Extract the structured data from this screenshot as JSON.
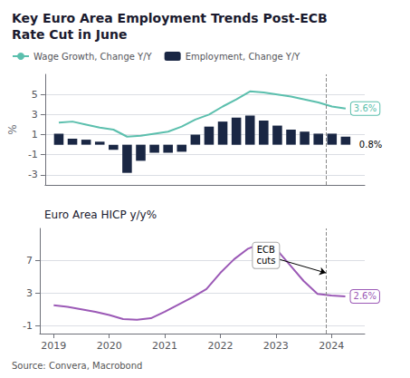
{
  "chart_data": [
    {
      "type": "bar",
      "title": "Key Euro Area Employment Trends Post-ECB\nRate Cut in June",
      "x": [
        2019.0,
        2019.25,
        2019.5,
        2019.75,
        2020.0,
        2020.25,
        2020.5,
        2020.75,
        2021.0,
        2021.25,
        2021.5,
        2021.75,
        2022.0,
        2022.25,
        2022.5,
        2022.75,
        2023.0,
        2023.25,
        2023.5,
        2023.75,
        2024.0,
        2024.25
      ],
      "series": [
        {
          "name": "Wage Growth, Change Y/Y",
          "type": "line",
          "color": "#5bbfad",
          "values": [
            2.2,
            2.3,
            2.0,
            1.7,
            1.5,
            0.8,
            0.9,
            1.1,
            1.3,
            1.8,
            2.5,
            3.0,
            3.8,
            4.5,
            5.3,
            5.2,
            5.0,
            4.8,
            4.5,
            4.2,
            3.8,
            3.6
          ]
        },
        {
          "name": "Employment, Change Y/Y",
          "type": "bar",
          "color": "#1a2744",
          "values": [
            1.1,
            0.6,
            0.5,
            0.3,
            -0.5,
            -2.8,
            -1.6,
            -0.8,
            -0.8,
            -0.7,
            1.0,
            1.8,
            2.3,
            2.7,
            2.9,
            2.4,
            1.9,
            1.5,
            1.3,
            1.1,
            1.1,
            0.8
          ]
        }
      ],
      "xlim": [
        2018.75,
        2024.6
      ],
      "ylim": [
        -4,
        7
      ],
      "yticks": [
        -3,
        -1,
        1,
        3,
        5
      ],
      "ylabel": "%",
      "grid": true,
      "legend": "upper left",
      "tick_labels": "y",
      "reference_lines": [
        {
          "x": 2023.9,
          "color": "#888888",
          "line_style": "dashed"
        }
      ],
      "annotations": [
        {
          "text": "3.6%",
          "series": "Wage Growth, Change Y/Y"
        },
        {
          "text": "0.8%",
          "series": "Employment, Change Y/Y"
        }
      ]
    },
    {
      "type": "line",
      "title": "Euro Area HICP y/y%",
      "caption": "Source: Convera, Macrobond",
      "x": [
        2019.0,
        2019.25,
        2019.5,
        2019.75,
        2020.0,
        2020.25,
        2020.5,
        2020.75,
        2021.0,
        2021.25,
        2021.5,
        2021.75,
        2022.0,
        2022.25,
        2022.5,
        2022.75,
        2023.0,
        2023.25,
        2023.5,
        2023.75,
        2024.0,
        2024.25
      ],
      "series": [
        {
          "name": "HICP",
          "type": "line",
          "color": "#9b59b6",
          "values": [
            1.5,
            1.3,
            1.0,
            0.7,
            0.3,
            -0.2,
            -0.3,
            -0.1,
            0.7,
            1.6,
            2.5,
            3.5,
            5.5,
            7.2,
            8.5,
            9.2,
            8.5,
            6.5,
            4.5,
            2.9,
            2.7,
            2.6
          ]
        }
      ],
      "xlim": [
        2018.75,
        2024.6
      ],
      "xticks": [
        2019,
        2020,
        2021,
        2022,
        2023,
        2024
      ],
      "ylim": [
        -2,
        11
      ],
      "yticks": [
        -1,
        3,
        7
      ],
      "grid": true,
      "reference_lines": [
        {
          "x": 2023.9,
          "color": "#888888",
          "line_style": "dashed"
        }
      ],
      "annotations": [
        {
          "text": "2.6%",
          "series": "HICP"
        },
        {
          "text": "ECB\ncuts",
          "x": 2023.9,
          "y": 5.5,
          "text_x": 2022.9,
          "text_y": 7.5
        }
      ]
    }
  ]
}
